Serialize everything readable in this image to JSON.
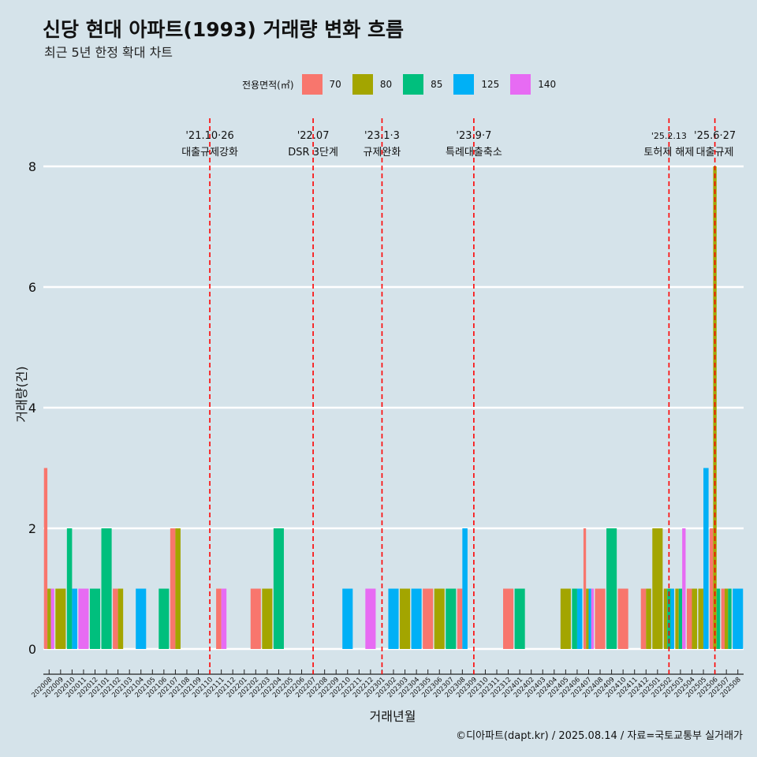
{
  "title": "신당 현대 아파트(1993) 거래량 변화 흐름",
  "subtitle": "최근 5년 한정 확대 차트",
  "legend_title": "전용면적(㎡)",
  "credit": "©디아파트(dapt.kr) / 2025.08.14 / 자료=국토교통부 실거래가",
  "colors": {
    "70": "#f8766d",
    "80": "#a3a500",
    "85": "#00bf7d",
    "125": "#00b0f6",
    "140": "#e76bf3",
    "event_line": "#ff0000",
    "background": "#d5e3ea",
    "grid": "#ffffff"
  },
  "chart_data": {
    "type": "bar",
    "xlabel": "거래년월",
    "ylabel": "거래량(건)",
    "ylim": [
      0,
      8
    ],
    "yticks": [
      0,
      2,
      4,
      6,
      8
    ],
    "grid": true,
    "legend_position": "top",
    "categories": [
      "202008",
      "202009",
      "202010",
      "202011",
      "202012",
      "202101",
      "202102",
      "202103",
      "202104",
      "202105",
      "202106",
      "202107",
      "202108",
      "202109",
      "202110",
      "202111",
      "202112",
      "202201",
      "202202",
      "202203",
      "202204",
      "202205",
      "202206",
      "202207",
      "202208",
      "202209",
      "202210",
      "202211",
      "202212",
      "202301",
      "202302",
      "202303",
      "202304",
      "202305",
      "202306",
      "202307",
      "202308",
      "202309",
      "202310",
      "202311",
      "202312",
      "202401",
      "202402",
      "202403",
      "202404",
      "202405",
      "202406",
      "202407",
      "202408",
      "202409",
      "202410",
      "202411",
      "202412",
      "202501",
      "202502",
      "202503",
      "202504",
      "202505",
      "202506",
      "202507",
      "202508"
    ],
    "series": [
      {
        "name": "70",
        "values": [
          3,
          0,
          0,
          0,
          0,
          0,
          1,
          0,
          0,
          0,
          0,
          2,
          0,
          0,
          0,
          1,
          0,
          0,
          1,
          0,
          0,
          0,
          0,
          0,
          0,
          0,
          0,
          0,
          0,
          0,
          0,
          0,
          0,
          1,
          0,
          0,
          1,
          0,
          0,
          0,
          1,
          0,
          0,
          0,
          0,
          0,
          0,
          2,
          1,
          0,
          1,
          0,
          1,
          0,
          0,
          0,
          1,
          0,
          2,
          1,
          0
        ]
      },
      {
        "name": "80",
        "values": [
          1,
          1,
          0,
          0,
          0,
          0,
          1,
          0,
          0,
          0,
          0,
          2,
          0,
          0,
          0,
          0,
          0,
          0,
          0,
          1,
          0,
          0,
          0,
          0,
          0,
          0,
          0,
          0,
          0,
          0,
          0,
          1,
          0,
          0,
          1,
          0,
          0,
          0,
          0,
          0,
          0,
          0,
          0,
          0,
          0,
          1,
          0,
          1,
          0,
          0,
          0,
          0,
          1,
          2,
          1,
          1,
          1,
          1,
          8,
          1,
          0
        ]
      },
      {
        "name": "85",
        "values": [
          0,
          0,
          2,
          0,
          1,
          2,
          0,
          0,
          0,
          0,
          1,
          0,
          0,
          0,
          0,
          0,
          0,
          0,
          0,
          0,
          2,
          0,
          0,
          0,
          0,
          0,
          0,
          0,
          0,
          0,
          0,
          0,
          0,
          0,
          0,
          1,
          0,
          0,
          0,
          0,
          0,
          1,
          0,
          0,
          0,
          0,
          1,
          0,
          0,
          2,
          0,
          0,
          0,
          0,
          1,
          1,
          0,
          0,
          1,
          1,
          0
        ]
      },
      {
        "name": "125",
        "values": [
          0,
          0,
          1,
          0,
          0,
          0,
          0,
          0,
          1,
          0,
          0,
          0,
          0,
          0,
          0,
          0,
          0,
          0,
          0,
          0,
          0,
          0,
          0,
          0,
          0,
          0,
          1,
          0,
          0,
          0,
          1,
          0,
          1,
          0,
          0,
          0,
          2,
          0,
          0,
          0,
          0,
          0,
          0,
          0,
          0,
          0,
          1,
          1,
          0,
          0,
          0,
          0,
          0,
          0,
          1,
          0,
          0,
          3,
          0,
          0,
          1
        ]
      },
      {
        "name": "140",
        "values": [
          1,
          0,
          0,
          1,
          0,
          0,
          0,
          0,
          0,
          0,
          0,
          0,
          0,
          0,
          0,
          1,
          0,
          0,
          0,
          0,
          0,
          0,
          0,
          0,
          0,
          0,
          0,
          0,
          1,
          0,
          0,
          0,
          0,
          0,
          0,
          0,
          0,
          0,
          0,
          0,
          0,
          0,
          0,
          0,
          0,
          0,
          0,
          1,
          0,
          0,
          0,
          0,
          0,
          0,
          0,
          2,
          0,
          0,
          0,
          0,
          0
        ]
      }
    ],
    "events": [
      {
        "category": "202110",
        "date": "'21.10·26",
        "label": "대출규제강화"
      },
      {
        "category": "202207",
        "date": "'22.07",
        "label": "DSR 3단계"
      },
      {
        "category": "202301",
        "date": "'23.1·3",
        "label": "규제완화"
      },
      {
        "category": "202309",
        "date": "'23.9·7",
        "label": "특례대출축소"
      },
      {
        "category": "202502",
        "date": "'25.2.13",
        "label": "토허제 해제"
      },
      {
        "category": "202506",
        "date": "'25.6·27",
        "label": "대출규제"
      }
    ]
  }
}
